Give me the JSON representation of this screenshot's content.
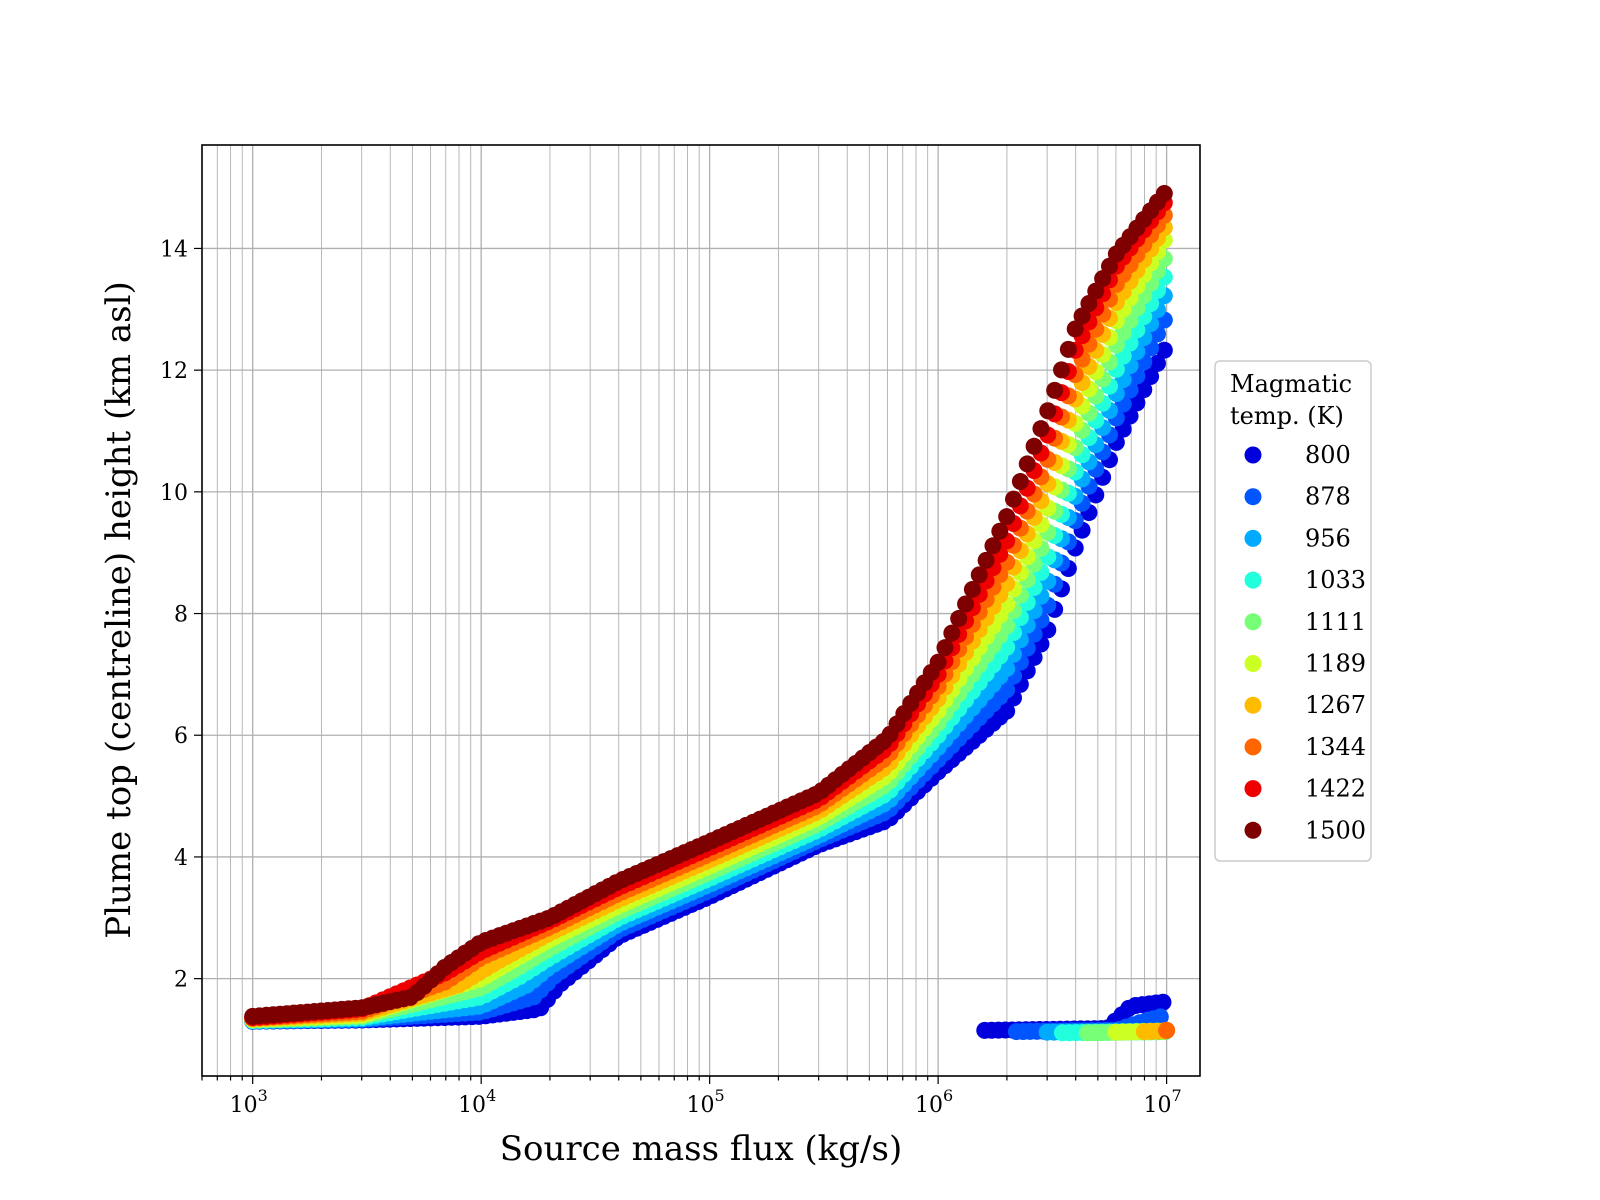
{
  "chart_data": {
    "type": "scatter",
    "title": "",
    "xlabel": "Source mass flux (kg/s)",
    "ylabel": "Plume top (centreline) height (km asl)",
    "xscale": "log",
    "xlim": [
      600,
      14000000
    ],
    "ylim": [
      0.4,
      15.7
    ],
    "grid": true,
    "x_ticks": [
      {
        "base": "10",
        "exp": "3"
      },
      {
        "base": "10",
        "exp": "4"
      },
      {
        "base": "10",
        "exp": "5"
      },
      {
        "base": "10",
        "exp": "6"
      },
      {
        "base": "10",
        "exp": "7"
      }
    ],
    "y_ticks": [
      "2",
      "4",
      "6",
      "8",
      "10",
      "12",
      "14"
    ],
    "legend": {
      "title_line1": "Magmatic",
      "title_line2": "temp. (K)",
      "placement": "right-outside",
      "entries": [
        "800",
        "878",
        "956",
        "1033",
        "1111",
        "1189",
        "1267",
        "1344",
        "1422",
        "1500"
      ]
    },
    "series": [
      {
        "name": "800",
        "color": "#0000dd",
        "x": [
          1000,
          3000,
          10000,
          18000,
          22000,
          40000,
          100000,
          300000,
          600000,
          1000000,
          2000000,
          3000000,
          4000000,
          6000000,
          10000000
        ],
        "y": [
          1.3,
          1.32,
          1.38,
          1.5,
          1.9,
          2.7,
          3.35,
          4.2,
          4.6,
          5.4,
          6.4,
          7.7,
          9.1,
          10.8,
          12.4
        ]
      },
      {
        "name": "878",
        "color": "#0055ff",
        "x": [
          1000,
          3000,
          10000,
          17000,
          21000,
          40000,
          100000,
          300000,
          600000,
          1000000,
          2000000,
          3000000,
          4000000,
          6000000,
          10000000
        ],
        "y": [
          1.3,
          1.33,
          1.45,
          1.7,
          2.05,
          2.8,
          3.45,
          4.28,
          4.75,
          5.6,
          6.75,
          8.1,
          9.55,
          11.2,
          12.9
        ]
      },
      {
        "name": "956",
        "color": "#00aaff",
        "x": [
          1000,
          3000,
          10000,
          16000,
          20000,
          40000,
          100000,
          300000,
          600000,
          1000000,
          2000000,
          3000000,
          4000000,
          6000000,
          10000000
        ],
        "y": [
          1.31,
          1.34,
          1.55,
          1.9,
          2.2,
          2.9,
          3.55,
          4.35,
          4.9,
          5.8,
          7.1,
          8.5,
          9.95,
          11.6,
          13.3
        ]
      },
      {
        "name": "1033",
        "color": "#22ffdd",
        "x": [
          1000,
          3000,
          10000,
          15000,
          20000,
          40000,
          100000,
          300000,
          600000,
          1000000,
          2000000,
          3000000,
          4000000,
          6000000,
          10000000
        ],
        "y": [
          1.31,
          1.36,
          1.7,
          2.05,
          2.35,
          3.0,
          3.65,
          4.45,
          5.05,
          6.0,
          7.45,
          8.9,
          10.35,
          12.0,
          13.6
        ]
      },
      {
        "name": "1111",
        "color": "#77ff77",
        "x": [
          1000,
          3000,
          10000,
          14000,
          20000,
          40000,
          100000,
          300000,
          600000,
          1000000,
          2000000,
          3000000,
          4000000,
          6000000,
          10000000
        ],
        "y": [
          1.32,
          1.38,
          1.85,
          2.15,
          2.5,
          3.1,
          3.75,
          4.55,
          5.2,
          6.2,
          7.8,
          9.3,
          10.75,
          12.4,
          13.9
        ]
      },
      {
        "name": "1189",
        "color": "#ccff22",
        "x": [
          1000,
          3000,
          10000,
          13000,
          20000,
          40000,
          100000,
          300000,
          600000,
          1000000,
          2000000,
          3000000,
          4000000,
          6000000,
          10000000
        ],
        "y": [
          1.33,
          1.4,
          2.0,
          2.25,
          2.65,
          3.2,
          3.85,
          4.65,
          5.35,
          6.4,
          8.15,
          9.7,
          11.15,
          12.8,
          14.2
        ]
      },
      {
        "name": "1267",
        "color": "#ffbb00",
        "x": [
          1000,
          3000,
          8000,
          12000,
          20000,
          40000,
          100000,
          300000,
          600000,
          1000000,
          2000000,
          3000000,
          4000000,
          6000000,
          10000000
        ],
        "y": [
          1.34,
          1.43,
          1.9,
          2.3,
          2.75,
          3.3,
          3.95,
          4.75,
          5.5,
          6.6,
          8.5,
          10.1,
          11.55,
          13.1,
          14.4
        ]
      },
      {
        "name": "1344",
        "color": "#ff6600",
        "x": [
          1000,
          3000,
          7000,
          10000,
          20000,
          40000,
          100000,
          300000,
          600000,
          1000000,
          2000000,
          3000000,
          4000000,
          6000000,
          10000000
        ],
        "y": [
          1.35,
          1.46,
          1.95,
          2.35,
          2.85,
          3.4,
          4.05,
          4.85,
          5.65,
          6.8,
          8.85,
          10.5,
          11.95,
          13.4,
          14.6
        ]
      },
      {
        "name": "1422",
        "color": "#ee0000",
        "x": [
          1000,
          3000,
          7000,
          10000,
          20000,
          40000,
          100000,
          300000,
          600000,
          1000000,
          2000000,
          3000000,
          4000000,
          6000000,
          10000000
        ],
        "y": [
          1.36,
          1.5,
          2.1,
          2.45,
          2.95,
          3.5,
          4.15,
          4.95,
          5.8,
          7.0,
          9.2,
          10.9,
          12.35,
          13.7,
          14.8
        ]
      },
      {
        "name": "1500",
        "color": "#7f0000",
        "x": [
          1000,
          3000,
          5000,
          7000,
          10000,
          20000,
          40000,
          100000,
          300000,
          600000,
          1000000,
          2000000,
          3000000,
          4000000,
          6000000,
          10000000
        ],
        "y": [
          1.38,
          1.52,
          1.7,
          2.2,
          2.6,
          3.0,
          3.6,
          4.25,
          5.05,
          5.95,
          7.2,
          9.6,
          11.3,
          12.7,
          13.9,
          14.95
        ]
      }
    ],
    "lower_branch": [
      {
        "name": "800",
        "color": "#0000dd",
        "x": [
          1600000,
          5500000,
          7000000,
          10000000
        ],
        "y": [
          1.15,
          1.18,
          1.55,
          1.62
        ]
      },
      {
        "name": "878",
        "color": "#0055ff",
        "x": [
          2200000,
          6000000,
          8000000,
          10000000
        ],
        "y": [
          1.13,
          1.15,
          1.3,
          1.4
        ]
      },
      {
        "name": "956",
        "color": "#00aaff",
        "x": [
          3000000,
          10000000
        ],
        "y": [
          1.12,
          1.14
        ]
      },
      {
        "name": "1033",
        "color": "#22ffdd",
        "x": [
          3500000,
          10000000
        ],
        "y": [
          1.11,
          1.13
        ]
      },
      {
        "name": "1111",
        "color": "#77ff77",
        "x": [
          4500000,
          10000000
        ],
        "y": [
          1.11,
          1.13
        ]
      },
      {
        "name": "1189",
        "color": "#ccff22",
        "x": [
          6000000,
          10000000
        ],
        "y": [
          1.12,
          1.14
        ]
      },
      {
        "name": "1267",
        "color": "#ffbb00",
        "x": [
          8000000,
          10000000
        ],
        "y": [
          1.13,
          1.14
        ]
      },
      {
        "name": "1344",
        "color": "#ff6600",
        "x": [
          10000000,
          10000000
        ],
        "y": [
          1.15,
          1.15
        ]
      }
    ]
  }
}
